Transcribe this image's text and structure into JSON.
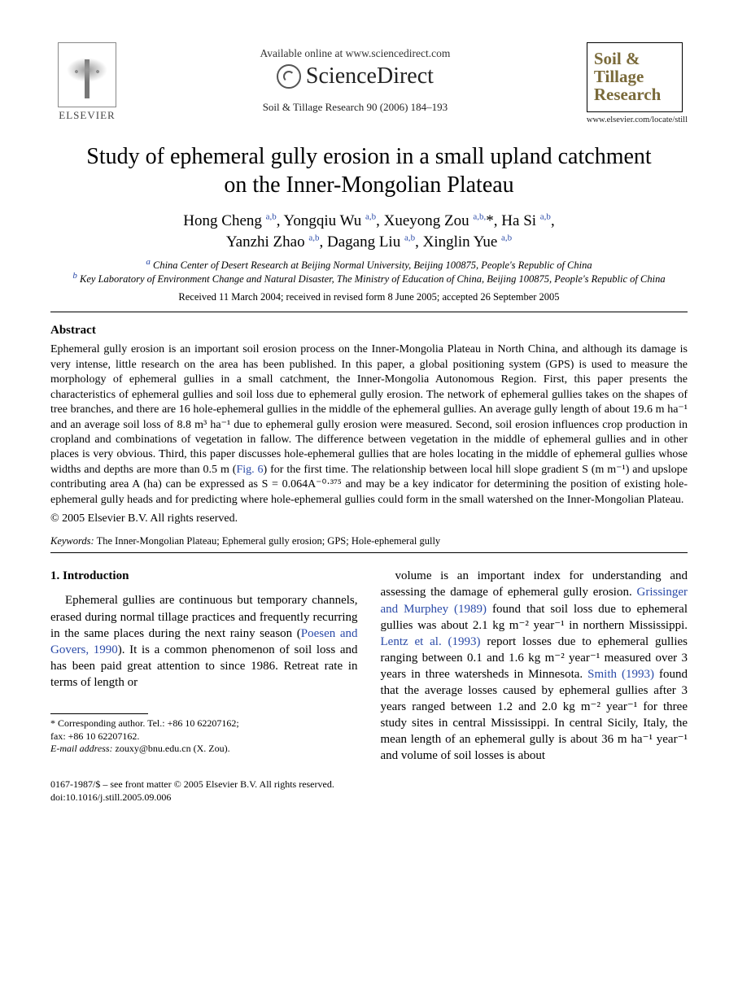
{
  "header": {
    "publisher": "ELSEVIER",
    "available_online": "Available online at www.sciencedirect.com",
    "sciencedirect": "ScienceDirect",
    "journal_ref": "Soil & Tillage Research 90 (2006) 184–193",
    "journal_box_title": "Soil & Tillage Research",
    "journal_url": "www.elsevier.com/locate/still"
  },
  "title": "Study of ephemeral gully erosion in a small upland catchment on the Inner-Mongolian Plateau",
  "authors_html": "Hong Cheng <sup>a,b</sup>, Yongqiu Wu <sup>a,b</sup>, Xueyong Zou <sup>a,b,</sup>*, Ha Si <sup>a,b</sup>,<br>Yanzhi Zhao <sup>a,b</sup>, Dagang Liu <sup>a,b</sup>, Xinglin Yue <sup>a,b</sup>",
  "affiliations": {
    "a": "China Center of Desert Research at Beijing Normal University, Beijing 100875, People's Republic of China",
    "b": "Key Laboratory of Environment Change and Natural Disaster, The Ministry of Education of China, Beijing 100875, People's Republic of China"
  },
  "dates": "Received 11 March 2004; received in revised form 8 June 2005; accepted 26 September 2005",
  "abstract_heading": "Abstract",
  "abstract": "Ephemeral gully erosion is an important soil erosion process on the Inner-Mongolia Plateau in North China, and although its damage is very intense, little research on the area has been published. In this paper, a global positioning system (GPS) is used to measure the morphology of ephemeral gullies in a small catchment, the Inner-Mongolia Autonomous Region. First, this paper presents the characteristics of ephemeral gullies and soil loss due to ephemeral gully erosion. The network of ephemeral gullies takes on the shapes of tree branches, and there are 16 hole-ephemeral gullies in the middle of the ephemeral gullies. An average gully length of about 19.6 m ha⁻¹ and an average soil loss of 8.8 m³ ha⁻¹ due to ephemeral gully erosion were measured. Second, soil erosion influences crop production in cropland and combinations of vegetation in fallow. The difference between vegetation in the middle of ephemeral gullies and in other places is very obvious. Third, this paper discusses hole-ephemeral gullies that are holes locating in the middle of ephemeral gullies whose widths and depths are more than 0.5 m (Fig. 6) for the first time. The relationship between local hill slope gradient S (m m⁻¹) and upslope contributing area A (ha) can be expressed as S = 0.064A⁻⁰·³⁷⁵ and may be a key indicator for determining the position of existing hole-ephemeral gully heads and for predicting where hole-ephemeral gullies could form in the small watershed on the Inner-Mongolian Plateau.",
  "copyright": "© 2005 Elsevier B.V. All rights reserved.",
  "keywords_label": "Keywords:",
  "keywords": "The Inner-Mongolian Plateau; Ephemeral gully erosion; GPS; Hole-ephemeral gully",
  "introduction_heading": "1. Introduction",
  "intro_left": "Ephemeral gullies are continuous but temporary channels, erased during normal tillage practices and frequently recurring in the same places during the next rainy season (Poesen and Govers, 1990). It is a common phenomenon of soil loss and has been paid great attention to since 1986. Retreat rate in terms of length or",
  "intro_right": "volume is an important index for understanding and assessing the damage of ephemeral gully erosion. Grissinger and Murphey (1989) found that soil loss due to ephemeral gullies was about 2.1 kg m⁻² year⁻¹ in northern Mississippi. Lentz et al. (1993) report losses due to ephemeral gullies ranging between 0.1 and 1.6 kg m⁻² year⁻¹ measured over 3 years in three watersheds in Minnesota. Smith (1993) found that the average losses caused by ephemeral gullies after 3 years ranged between 1.2 and 2.0 kg m⁻² year⁻¹ for three study sites in central Mississippi. In central Sicily, Italy, the mean length of an ephemeral gully is about 36 m ha⁻¹ year⁻¹ and volume of soil losses is about",
  "footnote": {
    "corresponding": "* Corresponding author. Tel.: +86 10 62207162;",
    "fax": "fax: +86 10 62207162.",
    "email_label": "E-mail address:",
    "email": "zouxy@bnu.edu.cn (X. Zou)."
  },
  "bottom": {
    "issn": "0167-1987/$ – see front matter © 2005 Elsevier B.V. All rights reserved.",
    "doi": "doi:10.1016/j.still.2005.09.006"
  },
  "colors": {
    "link": "#2a4aa8",
    "journal_title": "#7a6a3a",
    "text": "#000000",
    "background": "#ffffff"
  },
  "fonts": {
    "body": "Times New Roman",
    "title_size_pt": 21,
    "body_size_pt": 11,
    "abstract_size_pt": 10.5
  }
}
